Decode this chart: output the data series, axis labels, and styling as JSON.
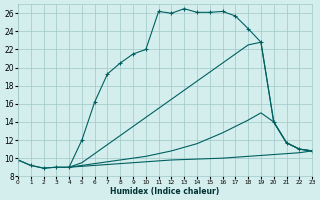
{
  "xlabel": "Humidex (Indice chaleur)",
  "bg_color": "#d4eeed",
  "grid_color": "#a0c8c8",
  "line_color": "#006060",
  "xlim": [
    0,
    23
  ],
  "ylim": [
    8,
    27
  ],
  "xticks": [
    0,
    1,
    2,
    3,
    4,
    5,
    6,
    7,
    8,
    9,
    10,
    11,
    12,
    13,
    14,
    15,
    16,
    17,
    18,
    19,
    20,
    21,
    22,
    23
  ],
  "yticks": [
    8,
    10,
    12,
    14,
    16,
    18,
    20,
    22,
    24,
    26
  ],
  "curve1_x": [
    0,
    1,
    2,
    3,
    4,
    5,
    6,
    7,
    8,
    9,
    10,
    11,
    12,
    13,
    14,
    15,
    16,
    17,
    18,
    19,
    20,
    21,
    22,
    23
  ],
  "curve1_y": [
    9.8,
    9.2,
    8.9,
    9.0,
    9.0,
    12.0,
    16.2,
    19.3,
    20.5,
    21.5,
    22.0,
    26.2,
    26.0,
    26.5,
    26.1,
    26.1,
    26.2,
    25.7,
    24.3,
    22.8,
    14.0,
    11.7,
    11.0,
    10.8
  ],
  "curve2_x": [
    4,
    5,
    6,
    7,
    8,
    9,
    10,
    11,
    12,
    13,
    14,
    15,
    16,
    17,
    18,
    19,
    20,
    21,
    22,
    23
  ],
  "curve2_y": [
    9.0,
    9.5,
    10.5,
    11.5,
    12.5,
    13.5,
    14.5,
    15.5,
    16.5,
    17.5,
    18.5,
    19.5,
    20.5,
    21.5,
    22.5,
    22.8,
    14.0,
    11.7,
    11.0,
    10.8
  ],
  "curve3_x": [
    4,
    5,
    6,
    7,
    8,
    9,
    10,
    11,
    12,
    13,
    14,
    15,
    16,
    17,
    18,
    19,
    20,
    21,
    22,
    23
  ],
  "curve3_y": [
    9.0,
    9.2,
    9.4,
    9.6,
    9.8,
    10.0,
    10.2,
    10.5,
    10.8,
    11.2,
    11.6,
    12.2,
    12.8,
    13.5,
    14.2,
    15.0,
    14.0,
    11.7,
    11.0,
    10.8
  ],
  "curve4_x": [
    0,
    1,
    2,
    3,
    4,
    5,
    6,
    7,
    8,
    9,
    10,
    11,
    12,
    13,
    14,
    15,
    16,
    17,
    18,
    19,
    20,
    21,
    22,
    23
  ],
  "curve4_y": [
    9.8,
    9.2,
    8.9,
    9.0,
    9.0,
    9.1,
    9.2,
    9.3,
    9.4,
    9.5,
    9.6,
    9.7,
    9.8,
    9.85,
    9.9,
    9.95,
    10.0,
    10.1,
    10.2,
    10.3,
    10.4,
    10.5,
    10.6,
    10.8
  ]
}
